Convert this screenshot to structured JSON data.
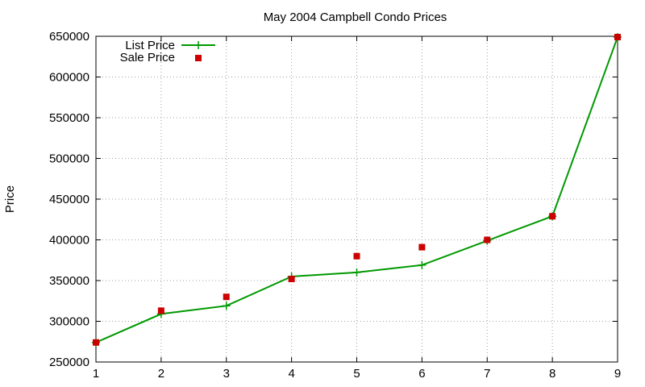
{
  "chart_data": {
    "type": "line",
    "title": "May 2004 Campbell Condo Prices",
    "xlabel": "",
    "ylabel": "Price",
    "x": [
      1,
      2,
      3,
      4,
      5,
      6,
      7,
      8,
      9
    ],
    "xlim": [
      1,
      9
    ],
    "ylim": [
      250000,
      650000
    ],
    "xticks": [
      "1",
      "2",
      "3",
      "4",
      "5",
      "6",
      "7",
      "8",
      "9"
    ],
    "yticks": [
      "250000",
      "300000",
      "350000",
      "400000",
      "450000",
      "500000",
      "550000",
      "600000",
      "650000"
    ],
    "grid": true,
    "legend_position": "top-left",
    "series": [
      {
        "name": "List Price",
        "style": "line-plus",
        "color": "#009900",
        "values": [
          274000,
          309000,
          319000,
          355000,
          360000,
          369000,
          399000,
          429000,
          649000
        ]
      },
      {
        "name": "Sale Price",
        "style": "square-points",
        "color": "#cc0000",
        "values": [
          274000,
          313000,
          330000,
          352000,
          380000,
          391000,
          400000,
          429000,
          649000
        ]
      }
    ]
  }
}
